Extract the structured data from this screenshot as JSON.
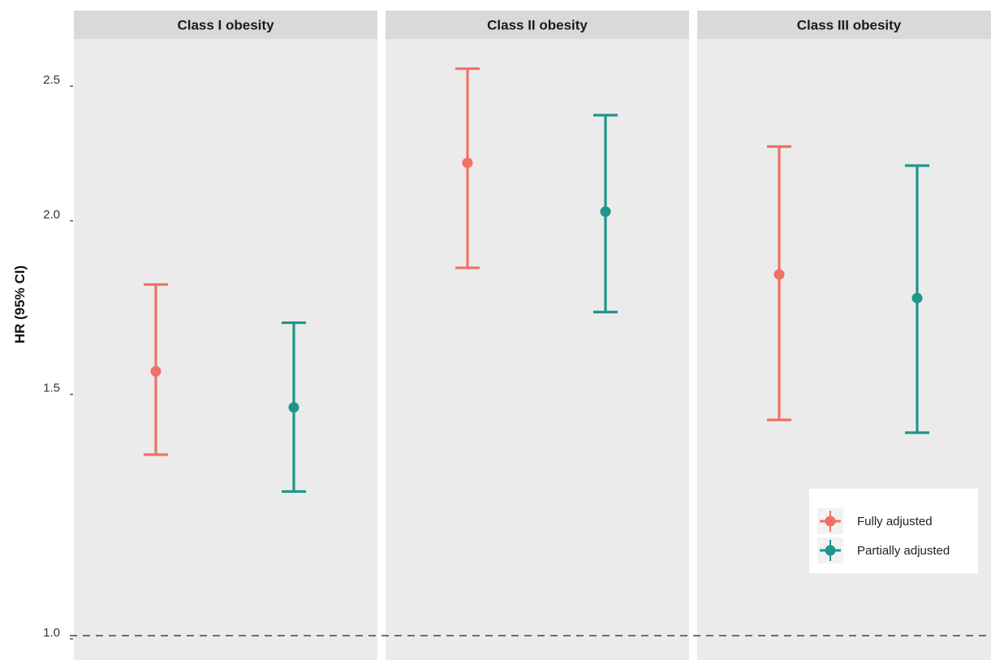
{
  "chart_data": {
    "type": "errorbar",
    "ylabel": "HR (95% CI)",
    "y_scale": "log",
    "ylim": [
      0.985,
      2.65
    ],
    "y_ticks": [
      {
        "value": 1.0,
        "label": "1.0"
      },
      {
        "value": 1.5,
        "label": "1.5"
      },
      {
        "value": 2.0,
        "label": "2.0"
      },
      {
        "value": 2.5,
        "label": "2.5"
      }
    ],
    "reference_line": {
      "value": 1.0,
      "style": "dashed"
    },
    "panels": [
      "Class I obesity",
      "Class II obesity",
      "Class III obesity"
    ],
    "series": [
      {
        "name": "Fully adjusted",
        "color": "#ef7168",
        "values": [
          {
            "panel": "Class I obesity",
            "hr": 1.55,
            "lo": 1.35,
            "hi": 1.79
          },
          {
            "panel": "Class II obesity",
            "hr": 2.19,
            "lo": 1.84,
            "hi": 2.56
          },
          {
            "panel": "Class III obesity",
            "hr": 1.82,
            "lo": 1.43,
            "hi": 2.25
          }
        ]
      },
      {
        "name": "Partially adjusted",
        "color": "#1f968b",
        "values": [
          {
            "panel": "Class I obesity",
            "hr": 1.46,
            "lo": 1.27,
            "hi": 1.68
          },
          {
            "panel": "Class II obesity",
            "hr": 2.02,
            "lo": 1.71,
            "hi": 2.37
          },
          {
            "panel": "Class III obesity",
            "hr": 1.75,
            "lo": 1.4,
            "hi": 2.18
          }
        ]
      }
    ],
    "grid": false,
    "legend_position": "bottom-right"
  }
}
